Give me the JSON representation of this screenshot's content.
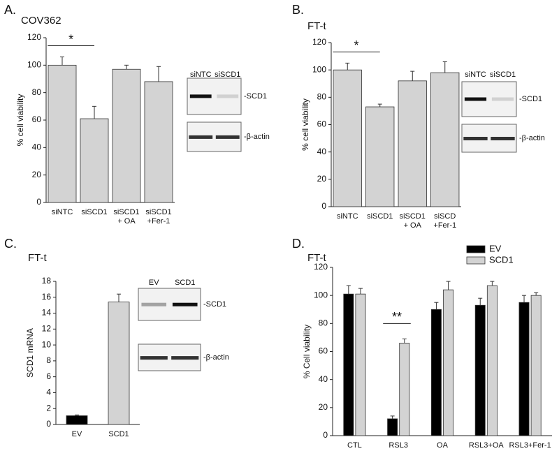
{
  "chart_data": [
    {
      "type": "bar",
      "panel": "A.",
      "title": "COV362",
      "ylabel": "% cell viability",
      "categories": [
        "siNTC",
        "siSCD1",
        "siSCD1\n+ OA",
        "siSCD1\n+Fer-1"
      ],
      "values": [
        100,
        61,
        97,
        88
      ],
      "errors": [
        6,
        9,
        3,
        11
      ],
      "color": "#d3d3d3",
      "ylim": [
        0,
        120
      ],
      "yticks": [
        0,
        20,
        40,
        60,
        80,
        100,
        120
      ],
      "significance": {
        "label": "*",
        "between": [
          0,
          1
        ]
      },
      "blot": {
        "lanes": [
          "siNTC",
          "siSCD1"
        ],
        "bands": [
          "-SCD1",
          "-β-actin"
        ]
      }
    },
    {
      "type": "bar",
      "panel": "B.",
      "title": "FT-t",
      "ylabel": "% cell viability",
      "categories": [
        "siNTC",
        "siSCD1",
        "siSCD1\n+ OA",
        "siSCD\n+Fer-1"
      ],
      "values": [
        100,
        73,
        92,
        98
      ],
      "errors": [
        5,
        2,
        7,
        8
      ],
      "color": "#d3d3d3",
      "ylim": [
        0,
        120
      ],
      "yticks": [
        0,
        20,
        40,
        60,
        80,
        100,
        120
      ],
      "significance": {
        "label": "*",
        "between": [
          0,
          1
        ]
      },
      "blot": {
        "lanes": [
          "siNTC",
          "siSCD1"
        ],
        "bands": [
          "-SCD1",
          "-β-actin"
        ]
      }
    },
    {
      "type": "bar",
      "panel": "C.",
      "title": "FT-t",
      "ylabel": "SCD1 mRNA",
      "categories": [
        "EV",
        "SCD1"
      ],
      "values": [
        1.1,
        15.4
      ],
      "errors": [
        0.1,
        1.0
      ],
      "colors": [
        "#000000",
        "#d3d3d3"
      ],
      "ylim": [
        0,
        18
      ],
      "yticks": [
        0,
        2,
        4,
        6,
        8,
        10,
        12,
        14,
        16,
        18
      ],
      "blot": {
        "lanes": [
          "EV",
          "SCD1"
        ],
        "bands": [
          "-SCD1",
          "-β-actin"
        ]
      }
    },
    {
      "type": "grouped-bar",
      "panel": "D.",
      "title": "FT-t",
      "ylabel": "% Cell viability",
      "categories": [
        "CTL",
        "RSL3",
        "OA",
        "RSL3+OA",
        "RSL3+Fer-1"
      ],
      "series": [
        {
          "name": "EV",
          "color": "#000000",
          "values": [
            101,
            12,
            90,
            93,
            95
          ],
          "errors": [
            6,
            2,
            5,
            5,
            5
          ]
        },
        {
          "name": "SCD1",
          "color": "#d3d3d3",
          "values": [
            101,
            66,
            104,
            107,
            100
          ],
          "errors": [
            4,
            3,
            6,
            3,
            2
          ]
        }
      ],
      "ylim": [
        0,
        120
      ],
      "yticks": [
        0,
        20,
        40,
        60,
        80,
        100,
        120
      ],
      "significance": {
        "label": "**",
        "category": 1
      },
      "legend": "top-right"
    }
  ]
}
